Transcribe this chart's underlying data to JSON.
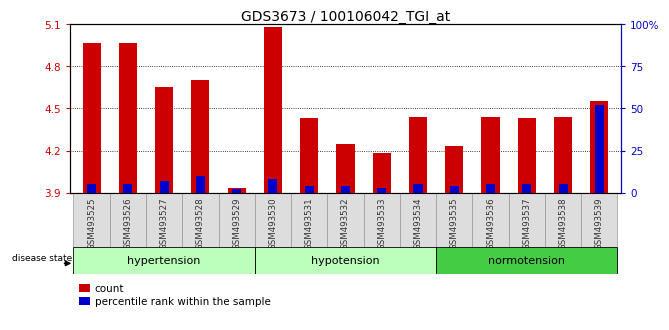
{
  "title": "GDS3673 / 100106042_TGI_at",
  "samples": [
    "GSM493525",
    "GSM493526",
    "GSM493527",
    "GSM493528",
    "GSM493529",
    "GSM493530",
    "GSM493531",
    "GSM493532",
    "GSM493533",
    "GSM493534",
    "GSM493535",
    "GSM493536",
    "GSM493537",
    "GSM493538",
    "GSM493539"
  ],
  "count_values": [
    4.97,
    4.97,
    4.65,
    4.7,
    3.93,
    5.08,
    4.43,
    4.25,
    4.18,
    4.44,
    4.23,
    4.44,
    4.43,
    4.44,
    4.55
  ],
  "percentile_values": [
    5,
    5,
    7,
    10,
    2,
    8,
    4,
    4,
    3,
    5,
    4,
    5,
    5,
    5,
    52
  ],
  "ylim": [
    3.9,
    5.1
  ],
  "y2lim": [
    0,
    100
  ],
  "yticks": [
    3.9,
    4.2,
    4.5,
    4.8,
    5.1
  ],
  "y2ticks": [
    0,
    25,
    50,
    75,
    100
  ],
  "bar_color": "#cc0000",
  "percentile_color": "#0000cc",
  "background_color": "#ffffff",
  "base_value": 3.9,
  "group_defs": [
    {
      "label": "hypertension",
      "start": 0,
      "end": 4,
      "color": "#bbffbb"
    },
    {
      "label": "hypotension",
      "start": 5,
      "end": 9,
      "color": "#bbffbb"
    },
    {
      "label": "normotension",
      "start": 10,
      "end": 14,
      "color": "#44cc44"
    }
  ]
}
